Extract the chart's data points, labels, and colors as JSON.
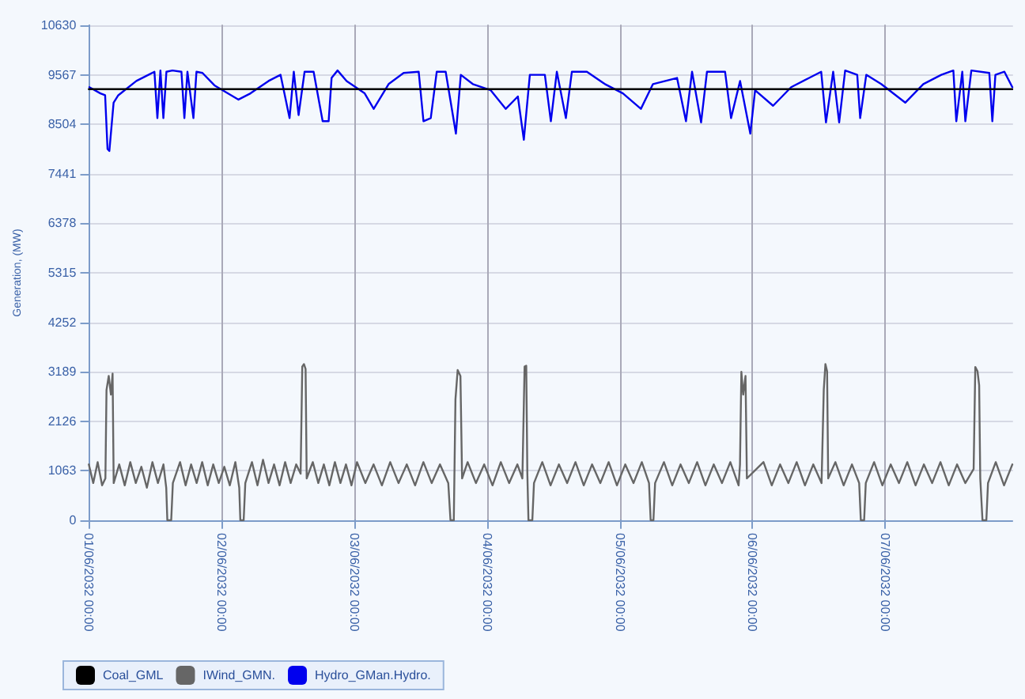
{
  "chart_data": {
    "type": "line",
    "ylabel": "Generation, (MW)",
    "xlim": [
      "2032-06-01T00:00",
      "2032-06-07T23:00"
    ],
    "ylim": [
      0,
      10630
    ],
    "xticks": [
      {
        "value": "2032-06-01T00:00",
        "label": "01/06/2032 00:00"
      },
      {
        "value": "2032-06-02T00:00",
        "label": "02/06/2032 00:00"
      },
      {
        "value": "2032-06-03T00:00",
        "label": "03/06/2032 00:00"
      },
      {
        "value": "2032-06-04T00:00",
        "label": "04/06/2032 00:00"
      },
      {
        "value": "2032-06-05T00:00",
        "label": "05/06/2032 00:00"
      },
      {
        "value": "2032-06-06T00:00",
        "label": "06/06/2032 00:00"
      },
      {
        "value": "2032-06-07T00:00",
        "label": "07/06/2032 00:00"
      }
    ],
    "yticks": [
      0,
      1063,
      2126,
      3189,
      4252,
      5315,
      6378,
      7441,
      8504,
      9567,
      10630
    ],
    "grid": true,
    "legend": "bottom",
    "marker": "none",
    "line_style": "solid",
    "series": [
      {
        "name": "Coal_GML",
        "color": "#000000",
        "x": [
          "2032-06-01T00:00",
          "2032-06-07T23:00"
        ],
        "values": [
          9260,
          9260
        ]
      },
      {
        "name": "IWind_GMN.",
        "color": "#666666",
        "x": [
          "2032-06-01T00:00",
          "2032-06-01T00:48",
          "2032-06-01T01:36",
          "2032-06-01T02:24",
          "2032-06-01T03:00",
          "2032-06-01T03:12",
          "2032-06-01T03:36",
          "2032-06-01T04:00",
          "2032-06-01T04:18",
          "2032-06-01T04:30",
          "2032-06-01T05:30",
          "2032-06-01T06:30",
          "2032-06-01T07:30",
          "2032-06-01T08:30",
          "2032-06-01T09:30",
          "2032-06-01T10:30",
          "2032-06-01T11:30",
          "2032-06-01T12:30",
          "2032-06-01T13:30",
          "2032-06-01T14:00",
          "2032-06-01T14:12",
          "2032-06-01T14:54",
          "2032-06-01T15:12",
          "2032-06-01T16:30",
          "2032-06-01T17:30",
          "2032-06-01T18:30",
          "2032-06-01T19:30",
          "2032-06-01T20:30",
          "2032-06-01T21:30",
          "2032-06-01T22:30",
          "2032-06-01T23:30",
          "2032-06-02T00:30",
          "2032-06-02T01:30",
          "2032-06-02T02:30",
          "2032-06-02T03:12",
          "2032-06-02T03:24",
          "2032-06-02T04:00",
          "2032-06-02T04:18",
          "2032-06-02T05:30",
          "2032-06-02T06:30",
          "2032-06-02T07:30",
          "2032-06-02T08:30",
          "2032-06-02T09:30",
          "2032-06-02T10:30",
          "2032-06-02T11:30",
          "2032-06-02T12:30",
          "2032-06-02T13:30",
          "2032-06-02T14:18",
          "2032-06-02T14:36",
          "2032-06-02T14:54",
          "2032-06-02T15:12",
          "2032-06-02T15:24",
          "2032-06-02T16:30",
          "2032-06-02T17:30",
          "2032-06-02T18:30",
          "2032-06-02T19:30",
          "2032-06-02T20:30",
          "2032-06-02T21:30",
          "2032-06-02T22:30",
          "2032-06-02T23:30",
          "2032-06-03T00:30",
          "2032-06-03T02:00",
          "2032-06-03T03:30",
          "2032-06-03T05:00",
          "2032-06-03T06:30",
          "2032-06-03T08:00",
          "2032-06-03T09:30",
          "2032-06-03T11:00",
          "2032-06-03T12:30",
          "2032-06-03T14:00",
          "2032-06-03T15:30",
          "2032-06-03T17:00",
          "2032-06-03T17:24",
          "2032-06-03T18:00",
          "2032-06-03T18:18",
          "2032-06-03T18:42",
          "2032-06-03T19:12",
          "2032-06-03T19:30",
          "2032-06-03T20:30",
          "2032-06-03T22:00",
          "2032-06-03T23:30",
          "2032-06-04T01:00",
          "2032-06-04T02:30",
          "2032-06-04T04:00",
          "2032-06-04T05:30",
          "2032-06-04T06:24",
          "2032-06-04T06:48",
          "2032-06-04T07:06",
          "2032-06-04T07:18",
          "2032-06-04T07:30",
          "2032-06-04T08:12",
          "2032-06-04T08:30",
          "2032-06-04T10:00",
          "2032-06-04T11:30",
          "2032-06-04T13:00",
          "2032-06-04T14:30",
          "2032-06-04T16:00",
          "2032-06-04T17:30",
          "2032-06-04T19:00",
          "2032-06-04T20:30",
          "2032-06-04T22:00",
          "2032-06-04T23:30",
          "2032-06-05T01:00",
          "2032-06-05T02:30",
          "2032-06-05T04:00",
          "2032-06-05T05:18",
          "2032-06-05T05:36",
          "2032-06-05T06:06",
          "2032-06-05T06:24",
          "2032-06-05T08:00",
          "2032-06-05T09:30",
          "2032-06-05T11:00",
          "2032-06-05T12:30",
          "2032-06-05T14:00",
          "2032-06-05T15:30",
          "2032-06-05T17:00",
          "2032-06-05T18:30",
          "2032-06-05T20:00",
          "2032-06-05T21:30",
          "2032-06-05T21:45",
          "2032-06-05T22:00",
          "2032-06-05T22:20",
          "2032-06-05T22:45",
          "2032-06-05T23:00",
          "2032-06-06T02:00",
          "2032-06-06T03:30",
          "2032-06-06T05:00",
          "2032-06-06T06:30",
          "2032-06-06T08:00",
          "2032-06-06T09:30",
          "2032-06-06T11:00",
          "2032-06-06T12:30",
          "2032-06-06T12:54",
          "2032-06-06T13:12",
          "2032-06-06T13:30",
          "2032-06-06T13:42",
          "2032-06-06T15:00",
          "2032-06-06T16:30",
          "2032-06-06T18:00",
          "2032-06-06T19:18",
          "2032-06-06T19:36",
          "2032-06-06T20:12",
          "2032-06-06T20:30",
          "2032-06-06T22:00",
          "2032-06-06T23:30",
          "2032-06-07T01:00",
          "2032-06-07T02:30",
          "2032-06-07T04:00",
          "2032-06-07T05:30",
          "2032-06-07T07:00",
          "2032-06-07T08:30",
          "2032-06-07T10:00",
          "2032-06-07T11:30",
          "2032-06-07T13:00",
          "2032-06-07T14:30",
          "2032-06-07T16:00",
          "2032-06-07T16:18",
          "2032-06-07T16:42",
          "2032-06-07T17:00",
          "2032-06-07T17:12",
          "2032-06-07T17:36",
          "2032-06-07T18:18",
          "2032-06-07T18:36",
          "2032-06-07T20:00",
          "2032-06-07T21:30",
          "2032-06-07T23:00"
        ],
        "values": [
          1200,
          800,
          1250,
          750,
          900,
          2800,
          3100,
          2700,
          3150,
          800,
          1200,
          750,
          1250,
          800,
          1150,
          700,
          1250,
          800,
          1200,
          700,
          0,
          0,
          800,
          1250,
          750,
          1200,
          800,
          1250,
          750,
          1200,
          800,
          1150,
          750,
          1250,
          700,
          0,
          0,
          800,
          1250,
          750,
          1300,
          800,
          1200,
          750,
          1250,
          800,
          1200,
          1000,
          3300,
          3355,
          3250,
          900,
          1250,
          800,
          1200,
          750,
          1250,
          800,
          1200,
          750,
          1250,
          800,
          1200,
          750,
          1250,
          800,
          1200,
          750,
          1250,
          800,
          1200,
          800,
          0,
          0,
          2600,
          3228,
          3100,
          900,
          1250,
          800,
          1200,
          750,
          1250,
          800,
          1200,
          900,
          3300,
          3319,
          1000,
          0,
          0,
          800,
          1250,
          750,
          1200,
          800,
          1250,
          750,
          1200,
          800,
          1250,
          750,
          1200,
          800,
          1250,
          800,
          0,
          0,
          800,
          1250,
          750,
          1200,
          800,
          1250,
          750,
          1200,
          800,
          1250,
          750,
          1200,
          3189,
          2700,
          3100,
          900,
          1250,
          750,
          1200,
          800,
          1250,
          750,
          1200,
          800,
          2800,
          3355,
          3200,
          900,
          1250,
          750,
          1200,
          800,
          0,
          0,
          800,
          1250,
          750,
          1200,
          800,
          1250,
          750,
          1200,
          800,
          1250,
          750,
          1200,
          800,
          1100,
          3293,
          3200,
          2900,
          900,
          0,
          0,
          800,
          1250,
          750,
          1200
        ]
      },
      {
        "name": "Hydro_GMan.Hydro.",
        "color": "#0000ee",
        "x": [
          "2032-06-01T00:06",
          "2032-06-01T02:06",
          "2032-06-01T02:57",
          "2032-06-01T03:23",
          "2032-06-01T03:43",
          "2032-06-01T04:29",
          "2032-06-01T05:20",
          "2032-06-01T08:36",
          "2032-06-01T10:47",
          "2032-06-01T11:52",
          "2032-06-01T12:24",
          "2032-06-01T12:57",
          "2032-06-01T13:29",
          "2032-06-01T14:02",
          "2032-06-01T15:07",
          "2032-06-01T16:45",
          "2032-06-01T17:17",
          "2032-06-01T17:50",
          "2032-06-01T18:55",
          "2032-06-01T19:28",
          "2032-06-01T20:33",
          "2032-06-01T22:43",
          "2032-06-02T03:04",
          "2032-06-02T05:14",
          "2032-06-02T08:30",
          "2032-06-02T10:40",
          "2032-06-02T12:18",
          "2032-06-02T13:04",
          "2032-06-02T13:56",
          "2032-06-02T15:01",
          "2032-06-02T16:39",
          "2032-06-02T18:17",
          "2032-06-02T19:22",
          "2032-06-02T19:54",
          "2032-06-02T20:59",
          "2032-06-02T22:37",
          "2032-06-03T01:53",
          "2032-06-03T03:31",
          "2032-06-03T06:13",
          "2032-06-03T08:56",
          "2032-06-03T11:39",
          "2032-06-03T12:31",
          "2032-06-03T13:50",
          "2032-06-03T14:55",
          "2032-06-03T16:32",
          "2032-06-03T18:23",
          "2032-06-03T19:16",
          "2032-06-03T21:26",
          "2032-06-04T00:41",
          "2032-06-04T03:24",
          "2032-06-04T05:35",
          "2032-06-04T06:40",
          "2032-06-04T07:45",
          "2032-06-04T10:28",
          "2032-06-04T11:33",
          "2032-06-04T12:38",
          "2032-06-04T14:16",
          "2032-06-04T15:21",
          "2032-06-04T18:04",
          "2032-06-04T21:20",
          "2032-06-05T00:35",
          "2032-06-05T03:50",
          "2032-06-05T06:01",
          "2032-06-05T10:22",
          "2032-06-05T11:59",
          "2032-06-05T13:05",
          "2032-06-05T14:43",
          "2032-06-05T15:47",
          "2032-06-05T19:03",
          "2032-06-05T20:08",
          "2032-06-05T21:46",
          "2032-06-05T23:37",
          "2032-06-06T00:29",
          "2032-06-06T03:44",
          "2032-06-06T07:00",
          "2032-06-06T10:16",
          "2032-06-06T12:26",
          "2032-06-06T13:18",
          "2032-06-06T14:36",
          "2032-06-06T15:41",
          "2032-06-06T16:46",
          "2032-06-06T18:57",
          "2032-06-06T19:29",
          "2032-06-06T20:35",
          "2032-06-06T23:17",
          "2032-06-07T03:38",
          "2032-06-07T06:54",
          "2032-06-07T10:09",
          "2032-06-07T12:20",
          "2032-06-07T12:52",
          "2032-06-07T13:57",
          "2032-06-07T14:30",
          "2032-06-07T15:35",
          "2032-06-07T18:50",
          "2032-06-07T19:23",
          "2032-06-07T19:56",
          "2032-06-07T21:34",
          "2032-06-07T23:00"
        ],
        "values": [
          9301,
          9168,
          9128,
          7972,
          7932,
          8969,
          9128,
          9434,
          9567,
          9633,
          8637,
          9660,
          8637,
          9633,
          9660,
          9633,
          8637,
          9633,
          8637,
          9633,
          9607,
          9341,
          9035,
          9168,
          9434,
          9567,
          8637,
          9633,
          8703,
          9633,
          9633,
          8570,
          8570,
          9500,
          9660,
          9434,
          9168,
          8836,
          9368,
          9607,
          9633,
          8570,
          8637,
          9633,
          9633,
          8304,
          9567,
          9368,
          9235,
          8836,
          9102,
          8172,
          9567,
          9567,
          8570,
          9633,
          8637,
          9633,
          9633,
          9368,
          9168,
          8836,
          9368,
          9500,
          8570,
          9633,
          8544,
          9633,
          9633,
          8637,
          9434,
          8304,
          9235,
          8902,
          9301,
          9500,
          9633,
          8544,
          9633,
          8544,
          9660,
          9567,
          8637,
          9567,
          9368,
          8969,
          9368,
          9567,
          9660,
          8570,
          9633,
          8570,
          9660,
          9607,
          8570,
          9567,
          9633,
          9301
        ]
      }
    ]
  }
}
